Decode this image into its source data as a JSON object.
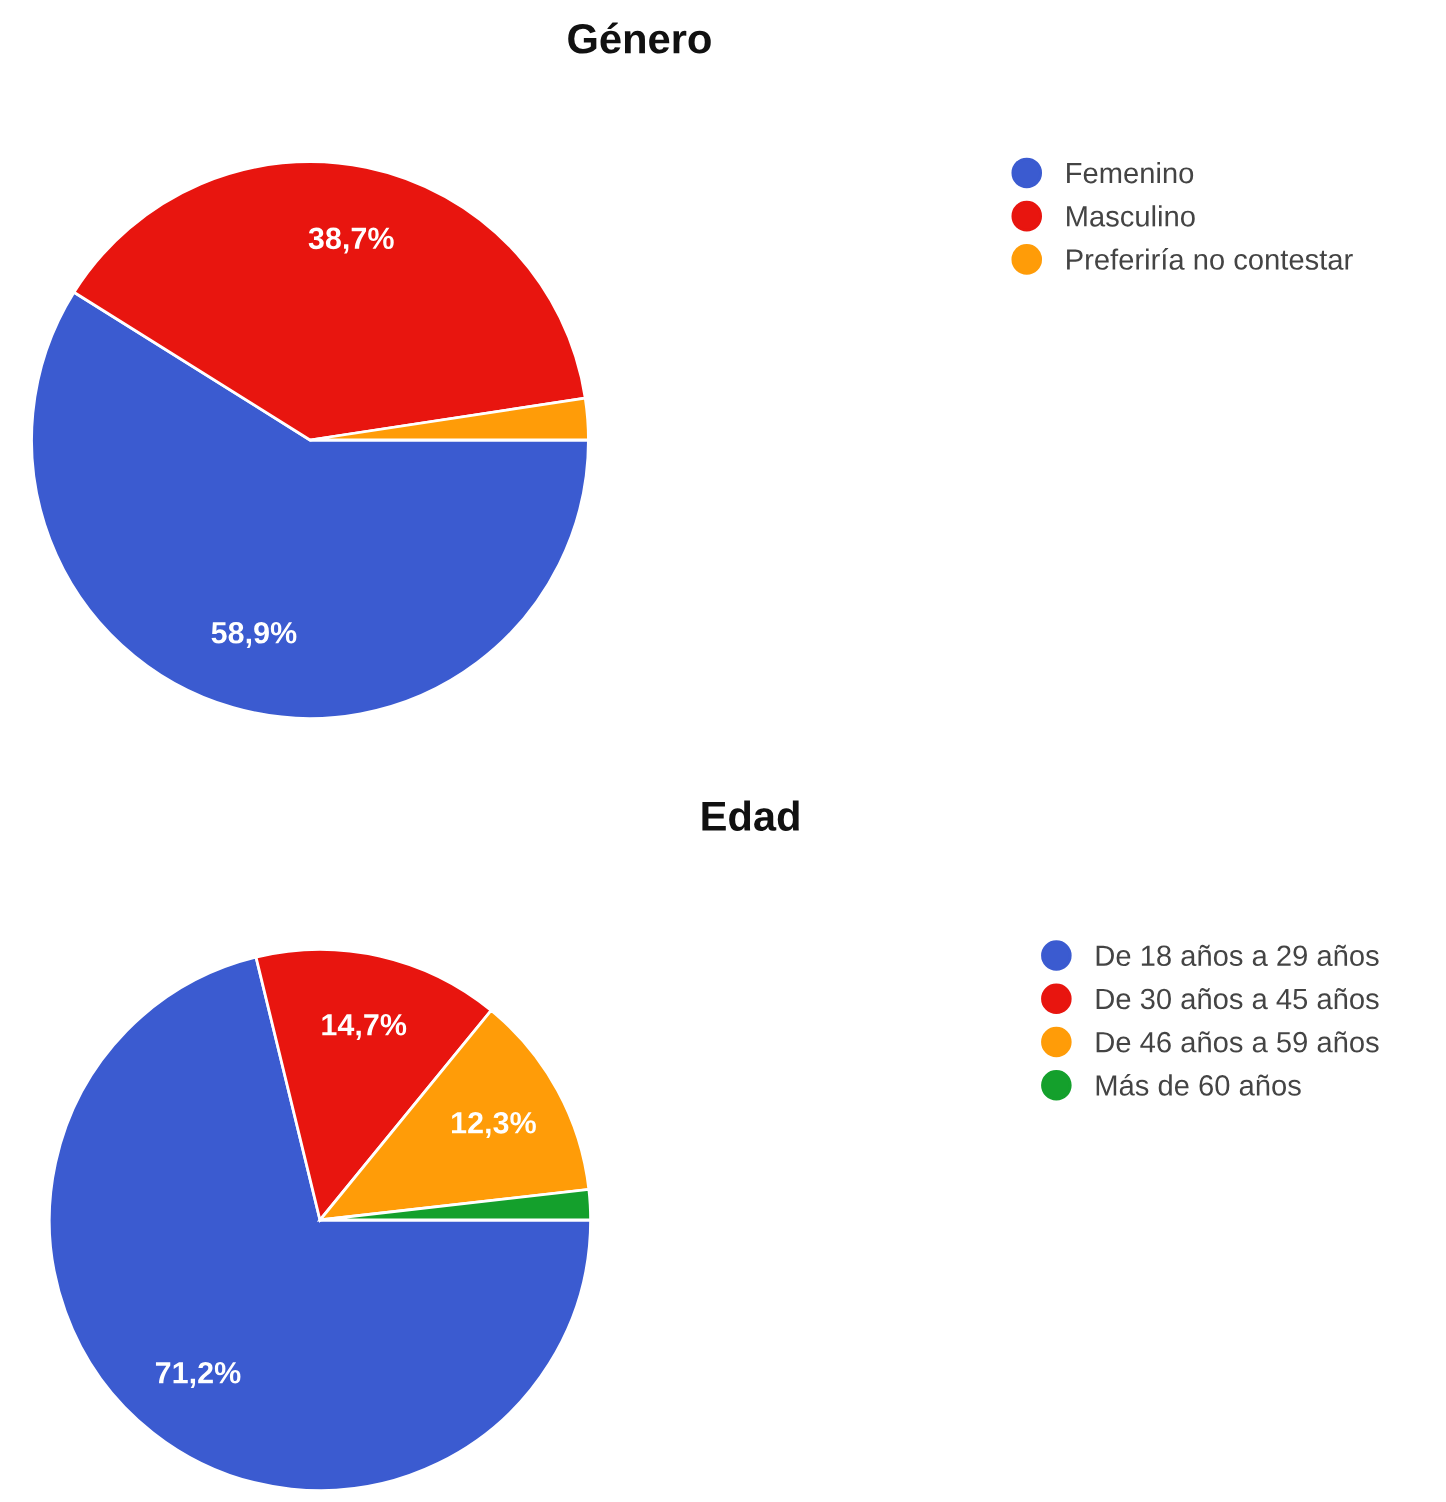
{
  "chart_data": [
    {
      "type": "pie",
      "title": "Género",
      "categories": [
        "Femenino",
        "Masculino",
        "Preferiría no contestar"
      ],
      "values": [
        58.9,
        38.7,
        2.4
      ],
      "colors": [
        "#3b5bd0",
        "#e8150f",
        "#ff9c08"
      ],
      "value_labels": [
        "58,9%",
        "38,7%",
        null
      ],
      "legend": "right"
    },
    {
      "type": "pie",
      "title": "Edad",
      "categories": [
        "De 18 años a 29 años",
        "De 30 años a 45 años",
        "De 46 años a 59 años",
        "Más de 60 años"
      ],
      "values": [
        71.2,
        14.7,
        12.3,
        1.8
      ],
      "colors": [
        "#3b5bd0",
        "#e8150f",
        "#ff9c08",
        "#14a02c"
      ],
      "value_labels": [
        "71,2%",
        "14,7%",
        "12,3%",
        null
      ],
      "legend": "right"
    }
  ]
}
